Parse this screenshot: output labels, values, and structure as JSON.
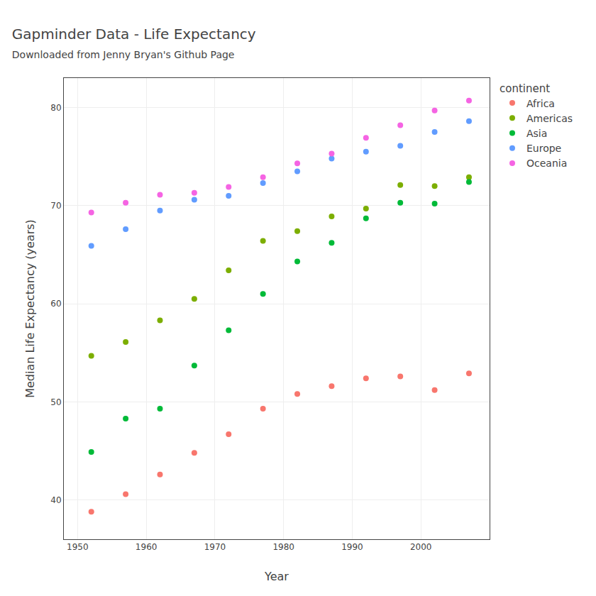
{
  "chart_data": {
    "type": "scatter",
    "title": "Gapminder Data - Life Expectancy",
    "subtitle": "Downloaded from Jenny Bryan's Github Page",
    "x_label": "Year",
    "y_label": "Median Life Expectancy (years)",
    "legend_title": "continent",
    "legend": "right",
    "grid": true,
    "marker": "circle",
    "xlim": [
      1948,
      2010
    ],
    "ylim": [
      36,
      83
    ],
    "xticks": [
      1950,
      1960,
      1970,
      1980,
      1990,
      2000
    ],
    "yticks": [
      40,
      50,
      60,
      70,
      80
    ],
    "series": [
      {
        "name": "Africa",
        "color": "#F8766D",
        "x": [
          1952,
          1957,
          1962,
          1967,
          1972,
          1977,
          1982,
          1987,
          1992,
          1997,
          2002,
          2007
        ],
        "values": [
          38.8,
          40.6,
          42.6,
          44.8,
          46.7,
          49.3,
          50.8,
          51.6,
          52.4,
          52.6,
          51.2,
          52.9
        ]
      },
      {
        "name": "Americas",
        "color": "#7CAE00",
        "x": [
          1952,
          1957,
          1962,
          1967,
          1972,
          1977,
          1982,
          1987,
          1992,
          1997,
          2002,
          2007
        ],
        "values": [
          54.7,
          56.1,
          58.3,
          60.5,
          63.4,
          66.4,
          67.4,
          68.9,
          69.7,
          72.1,
          72.0,
          72.9
        ]
      },
      {
        "name": "Asia",
        "color": "#00BA38",
        "x": [
          1952,
          1957,
          1962,
          1967,
          1972,
          1977,
          1982,
          1987,
          1992,
          1997,
          2002,
          2007
        ],
        "values": [
          44.9,
          48.3,
          49.3,
          53.7,
          57.3,
          61.0,
          64.3,
          66.2,
          68.7,
          70.3,
          70.2,
          72.4
        ]
      },
      {
        "name": "Europe",
        "color": "#619CFF",
        "x": [
          1952,
          1957,
          1962,
          1967,
          1972,
          1977,
          1982,
          1987,
          1992,
          1997,
          2002,
          2007
        ],
        "values": [
          65.9,
          67.6,
          69.5,
          70.6,
          71.0,
          72.3,
          73.5,
          74.8,
          75.5,
          76.1,
          77.5,
          78.6
        ]
      },
      {
        "name": "Oceania",
        "color": "#F564E3",
        "x": [
          1952,
          1957,
          1962,
          1967,
          1972,
          1977,
          1982,
          1987,
          1992,
          1997,
          2002,
          2007
        ],
        "values": [
          69.3,
          70.3,
          71.1,
          71.3,
          71.9,
          72.9,
          74.3,
          75.3,
          76.9,
          78.2,
          79.7,
          80.7
        ]
      }
    ]
  }
}
